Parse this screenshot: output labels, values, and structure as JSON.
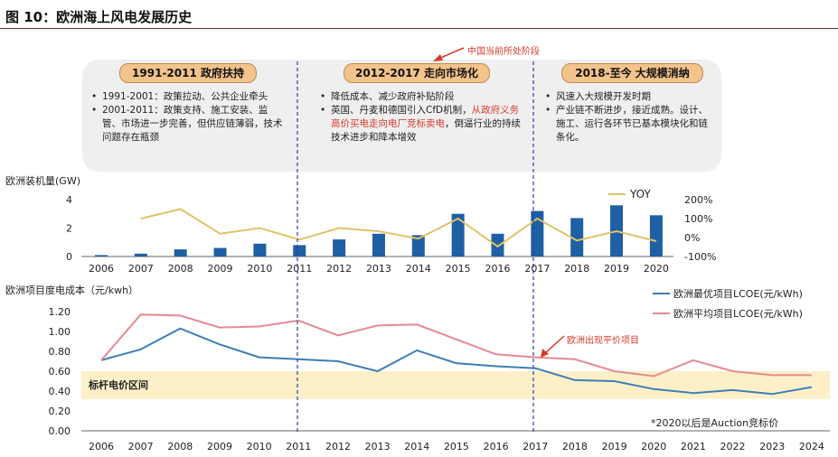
{
  "figure": {
    "title": "图 10：欧洲海上风电发展历史",
    "callout_top": "中国当前所处阶段",
    "callout_parity": "欧洲出现平价项目",
    "benchmark_label": "标杆电价区间",
    "footnote": "*2020以后是Auction竞标价"
  },
  "phases": [
    {
      "title": "1991-2011 政府扶持",
      "bullets": [
        {
          "parts": [
            {
              "text": "1991-2001：政策拉动、公共企业牵头",
              "red": false
            }
          ]
        },
        {
          "parts": [
            {
              "text": "2001-2011：政策支持、施工安装、监管、市场进一步完善，但供应链薄弱，技术问题存在瓶颈",
              "red": false
            }
          ]
        }
      ]
    },
    {
      "title": "2012-2017 走向市场化",
      "bullets": [
        {
          "parts": [
            {
              "text": "降低成本、减少政府补贴阶段",
              "red": false
            }
          ]
        },
        {
          "parts": [
            {
              "text": "英国、丹麦和德国引入CfD机制，",
              "red": false
            },
            {
              "text": "从政府义务高价买电走向电厂竞标卖电",
              "red": true
            },
            {
              "text": "，倒逼行业的持续技术进步和降本增效",
              "red": false
            }
          ]
        }
      ]
    },
    {
      "title": "2018-至今 大规模消纳",
      "bullets": [
        {
          "parts": [
            {
              "text": "风速入大规模开发时期",
              "red": false
            }
          ]
        },
        {
          "parts": [
            {
              "text": "产业链不断进步，接近成熟。设计、施工、运行各环节已基本模块化和链条化。",
              "red": false
            }
          ]
        }
      ]
    }
  ],
  "chart_data": [
    {
      "type": "bar",
      "ylabel": "欧洲装机量(GW)",
      "categories": [
        "2006",
        "2007",
        "2008",
        "2009",
        "2010",
        "2011",
        "2012",
        "2013",
        "2014",
        "2015",
        "2016",
        "2017",
        "2018",
        "2019",
        "2020"
      ],
      "values": [
        0.1,
        0.2,
        0.5,
        0.6,
        0.9,
        0.8,
        1.2,
        1.6,
        1.5,
        3.0,
        1.6,
        3.2,
        2.7,
        3.6,
        2.9
      ],
      "ylim": [
        0,
        4
      ],
      "y_ticks": [
        "0",
        "2",
        "4"
      ],
      "bar_color": "#1f5fa3",
      "secondary": {
        "type": "line",
        "name": "YOY",
        "values": [
          null,
          100,
          150,
          20,
          50,
          -11,
          50,
          33,
          -6,
          100,
          -47,
          100,
          -16,
          33,
          -19
        ],
        "ylim": [
          -100,
          200
        ],
        "y_ticks": [
          "-100%",
          "0%",
          "100%",
          "200%"
        ],
        "color": "#e0c36a"
      }
    },
    {
      "type": "line",
      "ylabel": "欧洲项目度电成本（元/kwh）",
      "x": [
        "2006",
        "2007",
        "2008",
        "2009",
        "2010",
        "2011",
        "2012",
        "2013",
        "2014",
        "2015",
        "2016",
        "2017",
        "2018",
        "2019",
        "2020",
        "2021",
        "2022",
        "2023",
        "2024"
      ],
      "series": [
        {
          "name": "欧洲最优项目LCOE(元/kWh)",
          "color": "#3d7fb4",
          "values": [
            0.71,
            0.82,
            1.03,
            0.87,
            0.74,
            0.72,
            0.7,
            0.6,
            0.81,
            0.68,
            0.65,
            0.63,
            0.51,
            0.5,
            0.42,
            0.38,
            0.41,
            0.37,
            0.44
          ]
        },
        {
          "name": "欧洲平均项目LCOE(元/kWh)",
          "color": "#e58a93",
          "values": [
            0.71,
            1.17,
            1.16,
            1.04,
            1.05,
            1.11,
            0.96,
            1.06,
            1.07,
            0.92,
            0.77,
            0.74,
            0.72,
            0.6,
            0.55,
            0.71,
            0.6,
            0.56,
            0.56
          ]
        }
      ],
      "ylim": [
        0,
        1.2
      ],
      "y_ticks": [
        "0.00",
        "0.20",
        "0.40",
        "0.60",
        "0.80",
        "1.00",
        "1.20"
      ],
      "band": {
        "from": 0.32,
        "to": 0.6,
        "color": "#fdf0c9"
      }
    }
  ]
}
